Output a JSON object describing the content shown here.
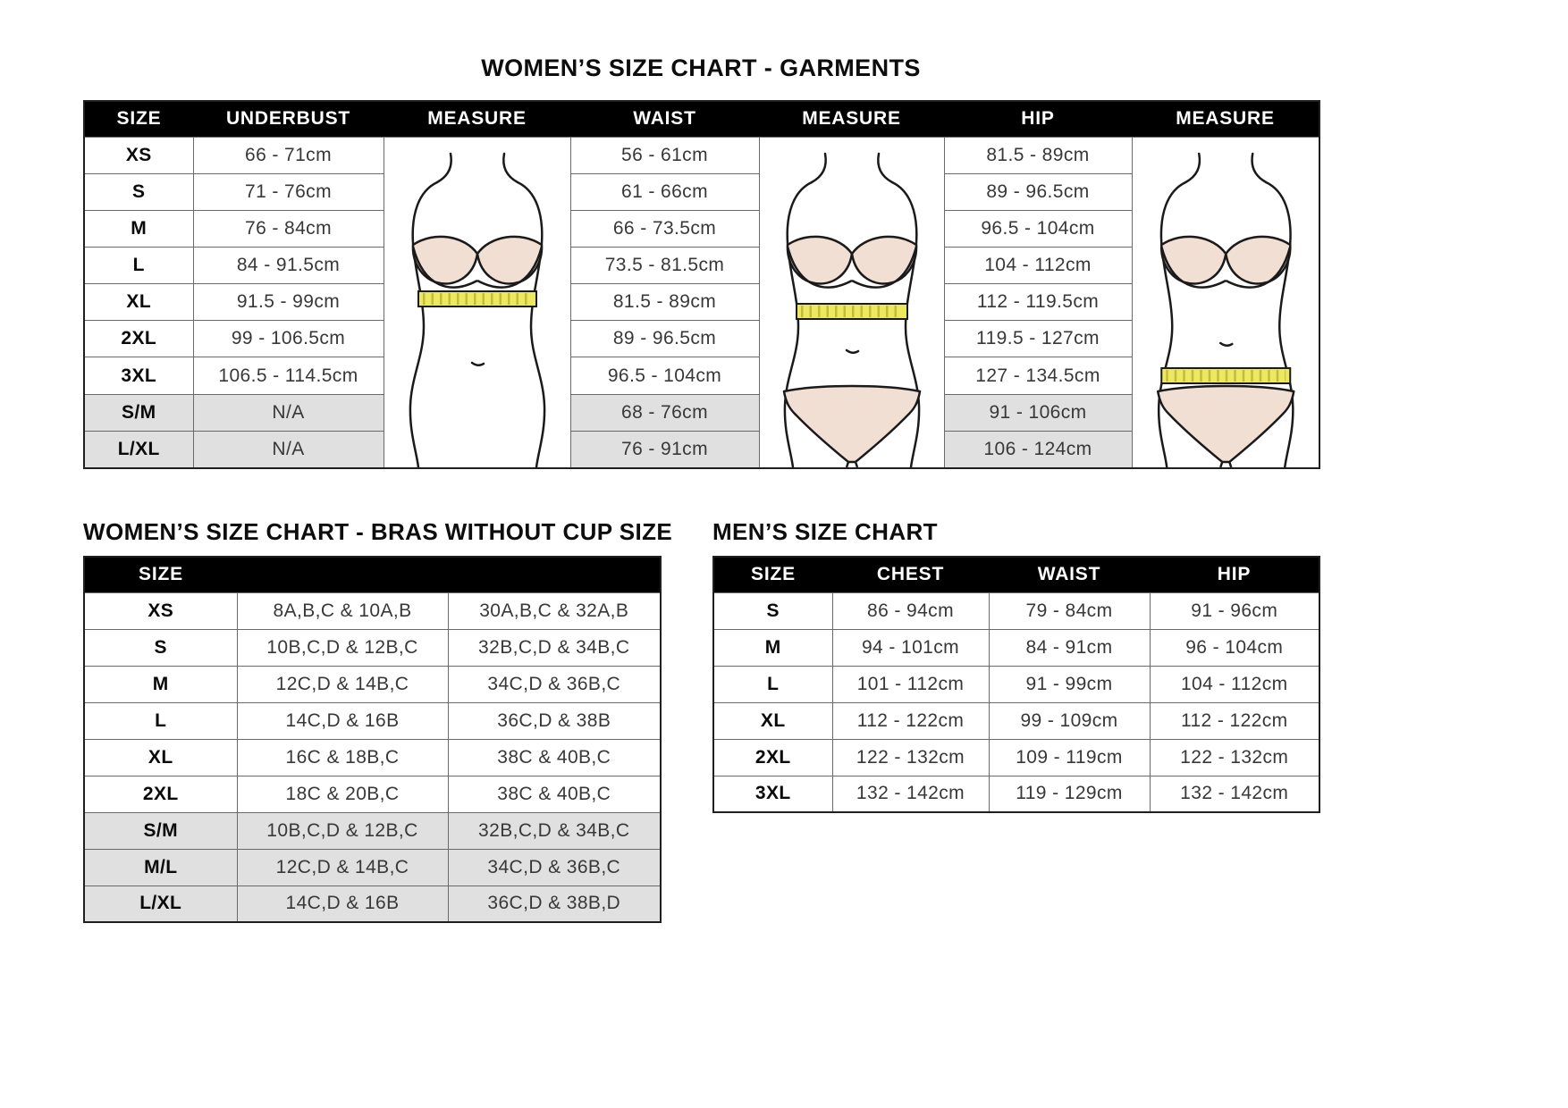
{
  "colors": {
    "header_bg": "#000000",
    "header_text": "#ffffff",
    "alt_row_bg": "#e0e0e0",
    "grid_border": "#6a6a6a",
    "skin_tone": "#f2dfd3",
    "tape_yellow": "#ece95f"
  },
  "garments_chart": {
    "title": "WOMEN’S SIZE CHART - GARMENTS",
    "columns": [
      "SIZE",
      "UNDERBUST",
      "MEASURE",
      "WAIST",
      "MEASURE",
      "HIP",
      "MEASURE"
    ],
    "figures": [
      "underbust-measure-figure",
      "waist-measure-figure",
      "hip-measure-figure"
    ],
    "rows": [
      {
        "size": "XS",
        "underbust": "66 - 71cm",
        "waist": "56 - 61cm",
        "hip": "81.5 - 89cm",
        "alt": false
      },
      {
        "size": "S",
        "underbust": "71 - 76cm",
        "waist": "61 - 66cm",
        "hip": "89 - 96.5cm",
        "alt": false
      },
      {
        "size": "M",
        "underbust": "76 - 84cm",
        "waist": "66 - 73.5cm",
        "hip": "96.5 - 104cm",
        "alt": false
      },
      {
        "size": "L",
        "underbust": "84 - 91.5cm",
        "waist": "73.5 - 81.5cm",
        "hip": "104 - 112cm",
        "alt": false
      },
      {
        "size": "XL",
        "underbust": "91.5 - 99cm",
        "waist": "81.5 - 89cm",
        "hip": "112 - 119.5cm",
        "alt": false
      },
      {
        "size": "2XL",
        "underbust": "99 - 106.5cm",
        "waist": "89 - 96.5cm",
        "hip": "119.5 - 127cm",
        "alt": false
      },
      {
        "size": "3XL",
        "underbust": "106.5 - 114.5cm",
        "waist": "96.5 - 104cm",
        "hip": "127 - 134.5cm",
        "alt": false
      },
      {
        "size": "S/M",
        "underbust": "N/A",
        "waist": "68 - 76cm",
        "hip": "91 - 106cm",
        "alt": true
      },
      {
        "size": "L/XL",
        "underbust": "N/A",
        "waist": "76 - 91cm",
        "hip": "106 - 124cm",
        "alt": true
      }
    ]
  },
  "bras_chart": {
    "title": "WOMEN’S SIZE CHART - BRAS WITHOUT CUP SIZE",
    "header_label": "SIZE",
    "rows": [
      {
        "size": "XS",
        "au_sizes": "8A,B,C & 10A,B",
        "us_sizes": "30A,B,C & 32A,B",
        "alt": false
      },
      {
        "size": "S",
        "au_sizes": "10B,C,D & 12B,C",
        "us_sizes": "32B,C,D & 34B,C",
        "alt": false
      },
      {
        "size": "M",
        "au_sizes": "12C,D & 14B,C",
        "us_sizes": "34C,D & 36B,C",
        "alt": false
      },
      {
        "size": "L",
        "au_sizes": "14C,D & 16B",
        "us_sizes": "36C,D & 38B",
        "alt": false
      },
      {
        "size": "XL",
        "au_sizes": "16C & 18B,C",
        "us_sizes": "38C & 40B,C",
        "alt": false
      },
      {
        "size": "2XL",
        "au_sizes": "18C & 20B,C",
        "us_sizes": "38C & 40B,C",
        "alt": false
      },
      {
        "size": "S/M",
        "au_sizes": "10B,C,D & 12B,C",
        "us_sizes": "32B,C,D & 34B,C",
        "alt": true
      },
      {
        "size": "M/L",
        "au_sizes": "12C,D & 14B,C",
        "us_sizes": "34C,D & 36B,C",
        "alt": true
      },
      {
        "size": "L/XL",
        "au_sizes": "14C,D & 16B",
        "us_sizes": "36C,D & 38B,D",
        "alt": true
      }
    ]
  },
  "mens_chart": {
    "title": "MEN’S SIZE CHART",
    "columns": [
      "SIZE",
      "CHEST",
      "WAIST",
      "HIP"
    ],
    "rows": [
      {
        "size": "S",
        "chest": "86 - 94cm",
        "waist": "79 - 84cm",
        "hip": "91 - 96cm"
      },
      {
        "size": "M",
        "chest": "94 - 101cm",
        "waist": "84 - 91cm",
        "hip": "96 - 104cm"
      },
      {
        "size": "L",
        "chest": "101 - 112cm",
        "waist": "91 - 99cm",
        "hip": "104 - 112cm"
      },
      {
        "size": "XL",
        "chest": "112 - 122cm",
        "waist": "99 - 109cm",
        "hip": "112 - 122cm"
      },
      {
        "size": "2XL",
        "chest": "122 - 132cm",
        "waist": "109 - 119cm",
        "hip": "122 - 132cm"
      },
      {
        "size": "3XL",
        "chest": "132 - 142cm",
        "waist": "119 - 129cm",
        "hip": "132 - 142cm"
      }
    ]
  }
}
